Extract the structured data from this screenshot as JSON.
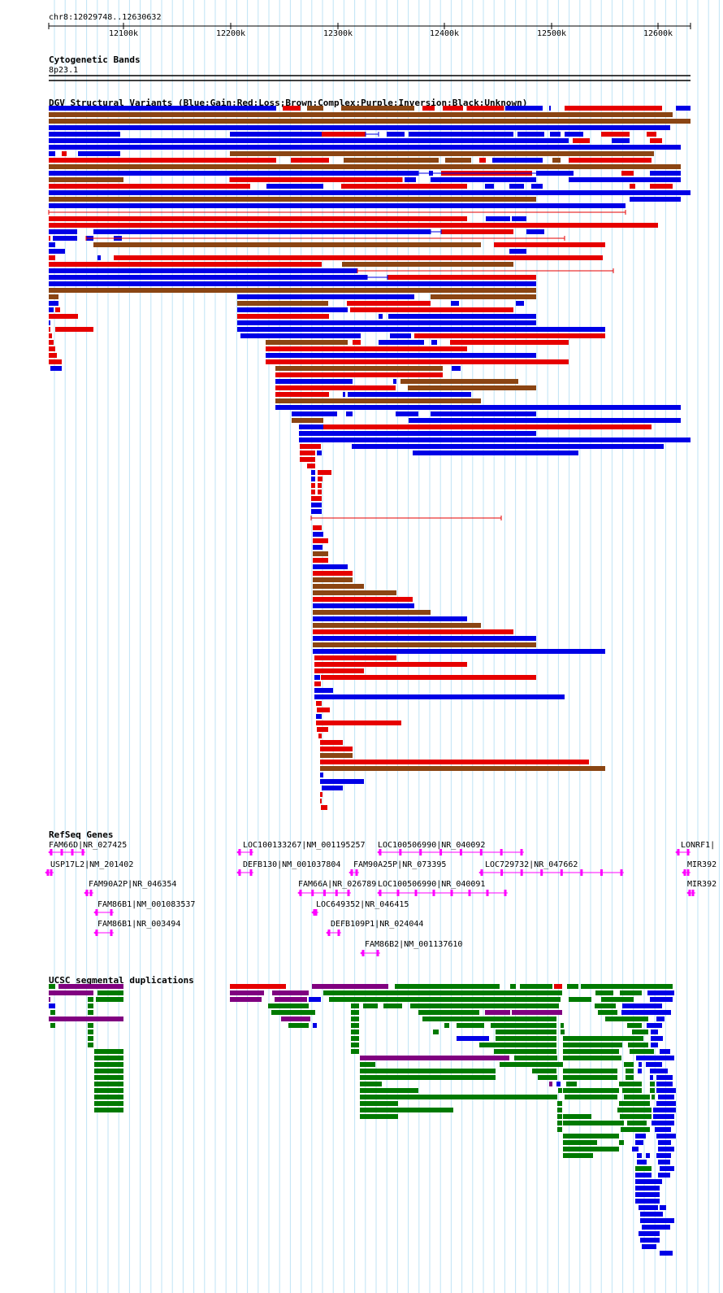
{
  "ruler": {
    "region": "chr8:12029748..12630632",
    "start": 12029748,
    "end": 12630632,
    "ticks": [
      "12100k",
      "12200k",
      "12300k",
      "12400k",
      "12500k",
      "12600k"
    ],
    "tick_values": [
      12100000,
      12200000,
      12300000,
      12400000,
      12500000,
      12600000
    ]
  },
  "tracks": {
    "cytoband": {
      "title": "Cytogenetic Bands",
      "band": "8p23.1"
    },
    "dgv": {
      "title": "DGV Structural Variants (Blue:Gain;Red:Loss;Brown:Complex;Purple:Inversion;Black:Unknown)",
      "colors": {
        "gain": "#0000e6",
        "loss": "#e60000",
        "complex": "#8b4513",
        "inversion": "#800080",
        "unknown": "#000000"
      }
    },
    "refseq": {
      "title": "RefSeq Genes",
      "color": "#ff00ff",
      "genes": [
        "FAM66D|NR_027425",
        "USP17L2|NM_201402",
        "FAM90A2P|NR_046354",
        "FAM86B1|NM_001083537",
        "FAM86B1|NR_003494",
        "LOC100133267|NM_001195257",
        "DEFB130|NM_001037804",
        "FAM66A|NR_026789",
        "LOC649352|NR_046415",
        "DEFB109P1|NR_024044",
        "LOC100506990|NR_040092",
        "FAM90A25P|NR_073395",
        "LOC100506990|NR_040091",
        "FAM86B2|NM_001137610",
        "LOC729732|NR_047662",
        "LONRF1|",
        "MIR392",
        "MIR392"
      ]
    },
    "segdups": {
      "title": "UCSC segmental duplications",
      "colors": {
        "green": "#008000",
        "blue": "#0000e6",
        "purple": "#800080",
        "red": "#e60000",
        "dark_green": "#006400"
      }
    }
  }
}
